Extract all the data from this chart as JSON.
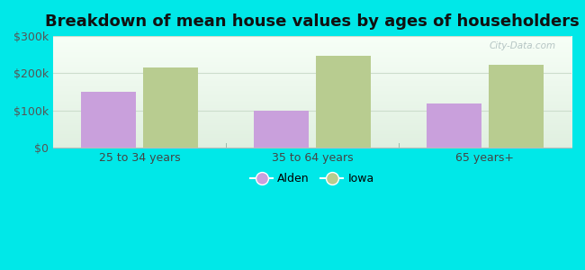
{
  "title": "Breakdown of mean house values by ages of householders",
  "categories": [
    "25 to 34 years",
    "35 to 64 years",
    "65 years+"
  ],
  "alden_values": [
    150000,
    100000,
    120000
  ],
  "iowa_values": [
    215000,
    248000,
    223000
  ],
  "alden_color": "#c9a0dc",
  "iowa_color": "#b8cc90",
  "background_outer": "#00e8e8",
  "ylim": [
    0,
    300000
  ],
  "yticks": [
    0,
    100000,
    200000,
    300000
  ],
  "ytick_labels": [
    "$0",
    "$100k",
    "$200k",
    "$300k"
  ],
  "legend_labels": [
    "Alden",
    "Iowa"
  ],
  "bar_width": 0.32,
  "title_fontsize": 13,
  "watermark": "City-Data.com"
}
